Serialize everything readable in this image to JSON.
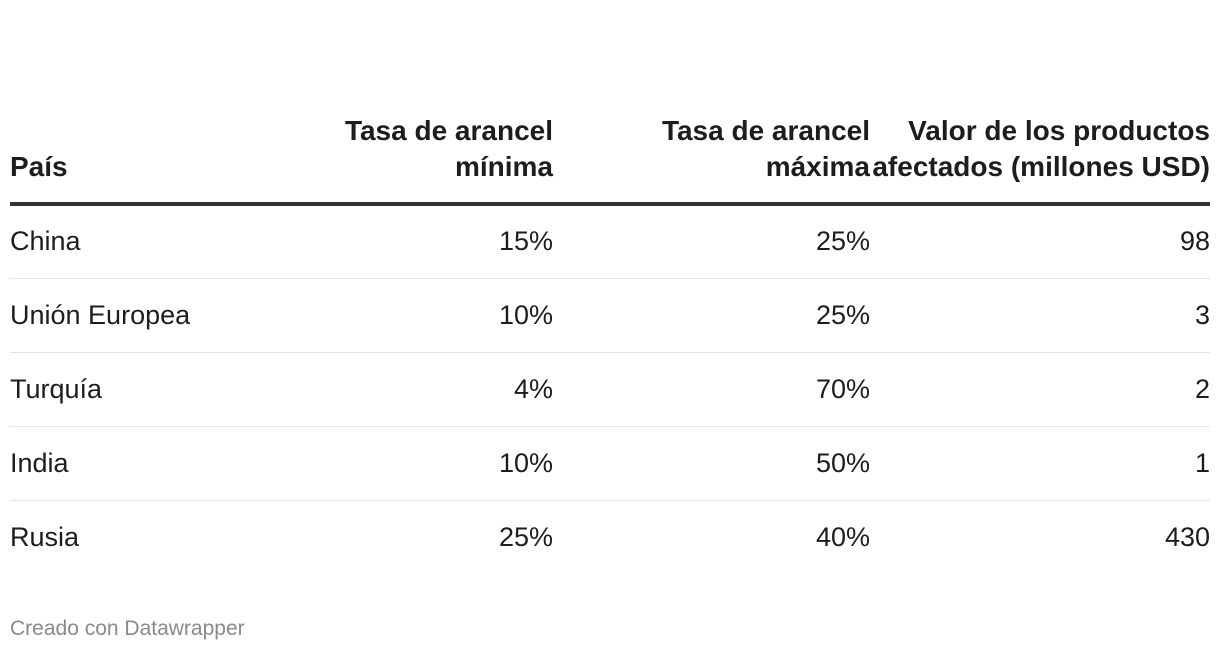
{
  "chart_data": {
    "type": "table",
    "columns": [
      "País",
      "Tasa de arancel mínima",
      "Tasa de arancel máxima",
      "Valor de los productos afectados (millones USD)"
    ],
    "rows": [
      {
        "country": "China",
        "min_rate": "15%",
        "max_rate": "25%",
        "value": "98"
      },
      {
        "country": "Unión Europea",
        "min_rate": "10%",
        "max_rate": "25%",
        "value": "3"
      },
      {
        "country": "Turquía",
        "min_rate": "4%",
        "max_rate": "70%",
        "value": "2"
      },
      {
        "country": "India",
        "min_rate": "10%",
        "max_rate": "50%",
        "value": "1"
      },
      {
        "country": "Rusia",
        "min_rate": "25%",
        "max_rate": "40%",
        "value": "430"
      }
    ]
  },
  "footer": {
    "credit": "Creado con Datawrapper"
  }
}
